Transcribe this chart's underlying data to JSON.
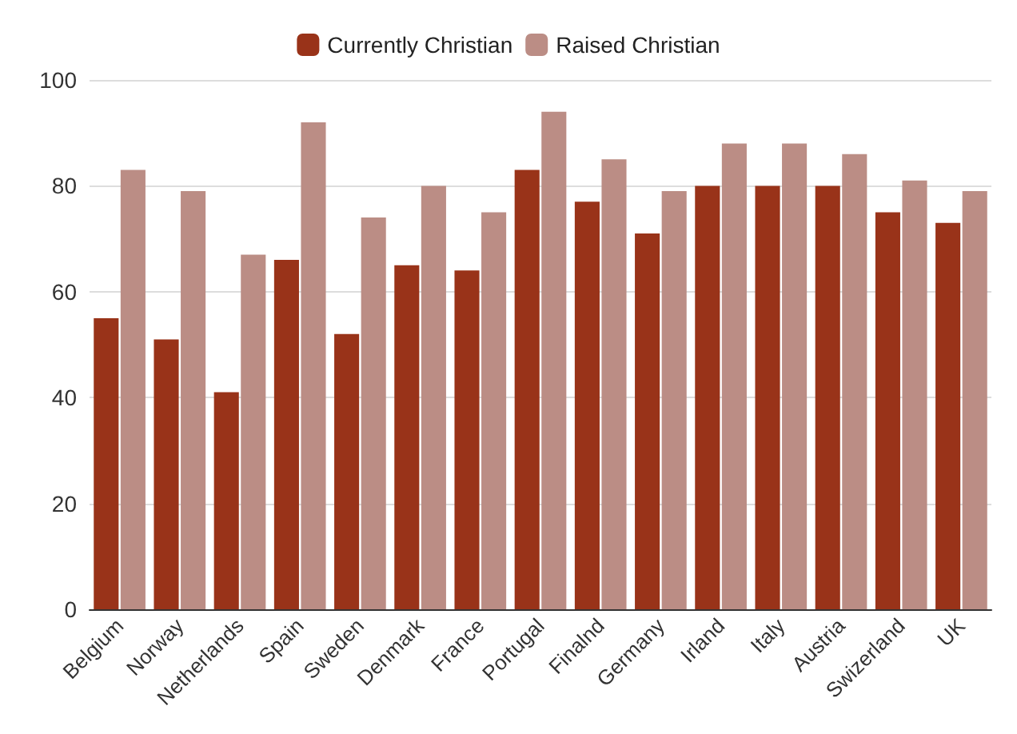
{
  "chart_data": {
    "type": "bar",
    "categories": [
      "Belgium",
      "Norway",
      "Netherlands",
      "Spain",
      "Sweden",
      "Denmark",
      "France",
      "Portugal",
      "Finalnd",
      "Germany",
      "Irland",
      "Italy",
      "Austria",
      "Swizerland",
      "UK"
    ],
    "series": [
      {
        "name": "Currently Christian",
        "color": "#993319",
        "values": [
          55,
          51,
          41,
          66,
          52,
          65,
          64,
          83,
          77,
          71,
          80,
          80,
          80,
          75,
          73
        ]
      },
      {
        "name": "Raised Christian",
        "color": "#bb8d85",
        "values": [
          83,
          79,
          67,
          92,
          74,
          80,
          75,
          94,
          85,
          79,
          88,
          88,
          86,
          81,
          79
        ]
      }
    ],
    "ylim": [
      0,
      100
    ],
    "yticks": [
      0,
      20,
      40,
      60,
      80,
      100
    ],
    "grid": "y",
    "legend": "top"
  }
}
